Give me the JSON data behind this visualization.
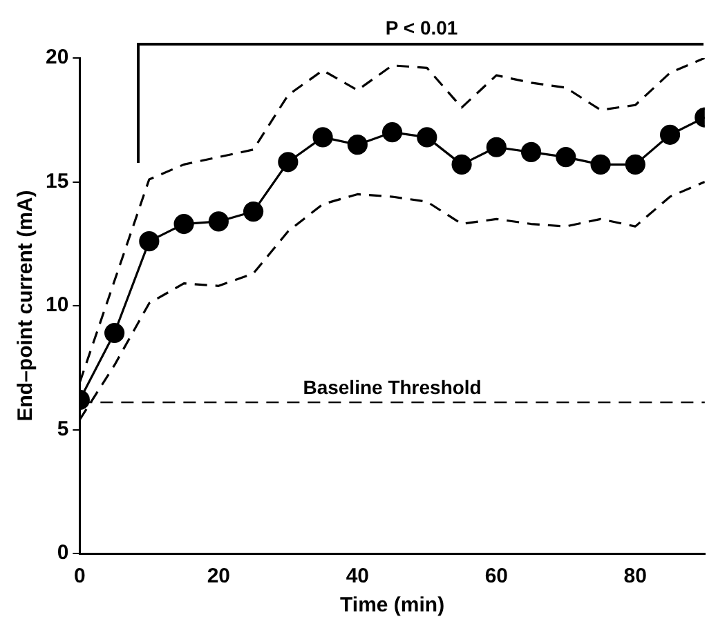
{
  "chart_data": {
    "type": "line",
    "xlabel": "Time (min)",
    "ylabel": "End–point current (mA)",
    "x": [
      0,
      5,
      10,
      15,
      20,
      25,
      30,
      35,
      40,
      45,
      50,
      55,
      60,
      65,
      70,
      75,
      80,
      85,
      90
    ],
    "series": [
      {
        "color": "#000000",
        "marker": "circle",
        "line_style": "solid",
        "values": [
          6.2,
          8.9,
          12.6,
          13.3,
          13.4,
          13.8,
          15.8,
          16.8,
          16.5,
          17.0,
          16.8,
          15.7,
          16.4,
          16.2,
          16.0,
          15.7,
          15.7,
          16.9,
          17.6
        ]
      },
      {
        "color": "#000000",
        "marker": "none",
        "line_style": "dashed",
        "values": [
          5.4,
          7.6,
          10.1,
          10.9,
          10.8,
          11.3,
          13.0,
          14.1,
          14.5,
          14.4,
          14.2,
          13.3,
          13.5,
          13.3,
          13.2,
          13.5,
          13.2,
          14.4,
          15.0
        ]
      },
      {
        "color": "#000000",
        "marker": "none",
        "line_style": "dashed",
        "values": [
          6.9,
          11.0,
          15.1,
          15.7,
          16.0,
          16.3,
          18.5,
          19.5,
          18.7,
          19.7,
          19.6,
          18.0,
          19.3,
          19.0,
          18.8,
          17.9,
          18.1,
          19.4,
          20.0
        ]
      }
    ],
    "xlim": [
      0,
      90
    ],
    "xticks": [
      0,
      20,
      40,
      60,
      80
    ],
    "ylim": [
      0,
      20
    ],
    "yticks": [
      0,
      5,
      10,
      15,
      20
    ],
    "ref_lines": [
      {
        "axis": "y",
        "value": 6.1,
        "label": "Baseline Threshold",
        "line_style": "dashed"
      }
    ],
    "annotations": [
      "P < 0.01"
    ],
    "grid": false,
    "legend": false
  }
}
